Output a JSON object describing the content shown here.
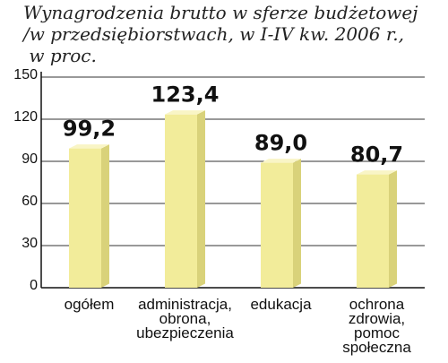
{
  "title_lines": [
    "Wynagrodzenia brutto w sferze budżetowej",
    "/w przedsiębiorstwach, w I-IV kw. 2006 r.,",
    " w proc."
  ],
  "chart_data": {
    "type": "bar",
    "title": "Wynagrodzenia brutto w sferze budżetowej /w przedsiębiorstwach, w I-IV kw. 2006 r., w proc.",
    "categories": [
      [
        "ogółem"
      ],
      [
        "administracja,",
        "obrona,",
        "ubezpieczenia"
      ],
      [
        "edukacja"
      ],
      [
        "ochrona",
        "zdrowia,",
        "pomoc",
        "społeczna"
      ]
    ],
    "values": [
      99.2,
      123.4,
      89.0,
      80.7
    ],
    "value_labels": [
      "99,2",
      "123,4",
      "89,0",
      "80,7"
    ],
    "yticks": [
      0,
      30,
      60,
      90,
      120,
      150
    ],
    "ylim": [
      0,
      150
    ],
    "grid": true,
    "colors": {
      "bar_front": "#f2ec9a",
      "bar_side": "#d9d27a",
      "bar_top": "#f9f5c6",
      "grid": "#333333",
      "axis": "#111111"
    }
  }
}
